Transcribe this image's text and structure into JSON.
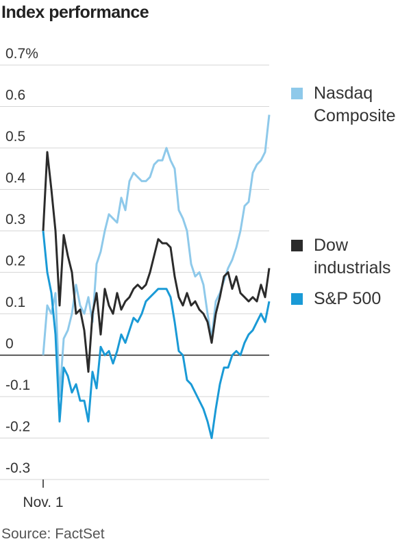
{
  "chart_data": {
    "type": "line",
    "title": "Index performance",
    "source": "Source: FactSet",
    "categories": [
      "Nov. 1",
      null,
      null,
      null,
      null,
      null,
      null,
      null,
      null,
      null,
      null,
      null,
      null,
      null,
      null,
      null,
      null,
      null,
      null,
      null,
      null,
      null,
      null,
      null,
      null,
      null,
      null,
      null,
      null,
      null,
      null,
      null,
      null,
      null,
      null,
      null,
      null,
      null,
      null,
      null,
      null,
      null,
      null,
      null,
      null,
      null,
      null,
      null,
      null,
      null,
      null,
      null,
      null,
      null,
      null,
      null
    ],
    "series": [
      {
        "name": "Nasdaq Composite",
        "color": "#8ec9ea",
        "values": [
          0,
          0.12,
          0.1,
          0.15,
          -0.1,
          0.04,
          0.06,
          0.1,
          0.17,
          0.12,
          0.1,
          0.14,
          0.08,
          0.22,
          0.25,
          0.3,
          0.34,
          0.33,
          0.32,
          0.38,
          0.35,
          0.42,
          0.44,
          0.43,
          0.42,
          0.42,
          0.43,
          0.46,
          0.47,
          0.47,
          0.5,
          0.47,
          0.45,
          0.35,
          0.33,
          0.3,
          0.22,
          0.19,
          0.2,
          0.17,
          0.1,
          0.04,
          0.13,
          0.15,
          0.18,
          0.21,
          0.23,
          0.26,
          0.3,
          0.36,
          0.37,
          0.44,
          0.46,
          0.47,
          0.49,
          0.58
        ]
      },
      {
        "name": "Dow industrials",
        "color": "#2b2b2b",
        "values": [
          0.3,
          0.49,
          0.4,
          0.3,
          0.12,
          0.29,
          0.24,
          0.2,
          0.1,
          0.11,
          0.06,
          -0.04,
          0.1,
          0.15,
          0.05,
          0.16,
          0.12,
          0.1,
          0.15,
          0.11,
          0.13,
          0.14,
          0.16,
          0.17,
          0.16,
          0.17,
          0.2,
          0.24,
          0.28,
          0.27,
          0.27,
          0.26,
          0.19,
          0.14,
          0.12,
          0.15,
          0.12,
          0.13,
          0.11,
          0.1,
          0.08,
          0.03,
          0.1,
          0.14,
          0.19,
          0.2,
          0.16,
          0.19,
          0.15,
          0.14,
          0.13,
          0.14,
          0.13,
          0.17,
          0.14,
          0.21
        ]
      },
      {
        "name": "S&P 500",
        "color": "#1a9ad6",
        "values": [
          0.3,
          0.2,
          0.15,
          0.05,
          -0.16,
          -0.03,
          -0.05,
          -0.09,
          -0.07,
          -0.11,
          -0.11,
          -0.16,
          -0.04,
          -0.08,
          0.02,
          0.0,
          0.01,
          -0.02,
          0.01,
          0.05,
          0.03,
          0.06,
          0.09,
          0.08,
          0.1,
          0.13,
          0.14,
          0.15,
          0.16,
          0.16,
          0.16,
          0.14,
          0.08,
          0.01,
          0.0,
          -0.06,
          -0.07,
          -0.09,
          -0.11,
          -0.13,
          -0.16,
          -0.2,
          -0.13,
          -0.07,
          -0.03,
          -0.03,
          0.0,
          0.01,
          0.0,
          0.03,
          0.05,
          0.06,
          0.08,
          0.1,
          0.08,
          0.13
        ]
      }
    ],
    "ylim": [
      -0.3,
      0.7
    ],
    "yticks": [
      {
        "value": 0.7,
        "label": "0.7%"
      },
      0.6,
      0.5,
      0.4,
      0.3,
      0.2,
      0.1,
      0,
      -0.1,
      -0.2,
      -0.3
    ],
    "grid": true
  }
}
